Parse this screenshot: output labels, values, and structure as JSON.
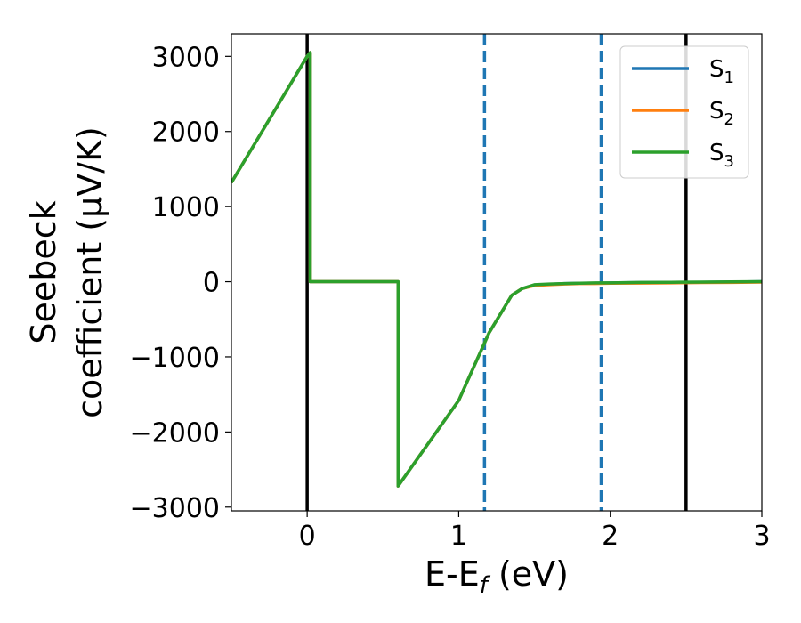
{
  "chart_data": {
    "type": "line",
    "xlabel": {
      "base": "E-E",
      "sub": "f",
      "tail": " (eV)"
    },
    "ylabel": {
      "line1": "Seebeck",
      "line2": "coefficient  (μV/K)"
    },
    "xlim": [
      -0.5,
      3.0
    ],
    "ylim": [
      -3050,
      3300
    ],
    "xticks": [
      0,
      1,
      2,
      3
    ],
    "xtick_labels": [
      "0",
      "1",
      "2",
      "3"
    ],
    "yticks": [
      -3000,
      -2000,
      -1000,
      0,
      1000,
      2000,
      3000
    ],
    "ytick_labels": [
      "−3000",
      "−2000",
      "−1000",
      "0",
      "1000",
      "2000",
      "3000"
    ],
    "grid": false,
    "legend_position": "top-right",
    "vlines": [
      {
        "x": 0.0,
        "style": "solid",
        "color": "#000000"
      },
      {
        "x": 2.5,
        "style": "solid",
        "color": "#000000"
      },
      {
        "x": 1.17,
        "style": "dashed",
        "color": "#1f77b4"
      },
      {
        "x": 1.94,
        "style": "dashed",
        "color": "#1f77b4"
      }
    ],
    "series": [
      {
        "name": "S",
        "sub": "1",
        "color": "#1f77b4",
        "x": [
          -0.5,
          0.0,
          0.02,
          0.02,
          0.6,
          0.6,
          1.0,
          1.2,
          1.35,
          1.42,
          1.5,
          1.6,
          1.7,
          1.8,
          1.9,
          2.0,
          2.2,
          2.4,
          2.6,
          2.8,
          3.0
        ],
        "y": [
          1320,
          3000,
          3050,
          0,
          0,
          -2720,
          -1580,
          -680,
          -180,
          -90,
          -45,
          -35,
          -25,
          -20,
          -20,
          -15,
          -12,
          -10,
          -8,
          -6,
          0
        ]
      },
      {
        "name": "S",
        "sub": "2",
        "color": "#ff7f0e",
        "x": [
          -0.5,
          0.0,
          0.02,
          0.02,
          0.6,
          0.6,
          1.0,
          1.2,
          1.35,
          1.42,
          1.5,
          1.6,
          1.7,
          1.8,
          1.9,
          2.0,
          2.2,
          2.4,
          2.6,
          2.8,
          3.0
        ],
        "y": [
          1320,
          3000,
          3050,
          0,
          0,
          -2720,
          -1580,
          -680,
          -180,
          -90,
          -50,
          -40,
          -30,
          -25,
          -25,
          -20,
          -18,
          -15,
          -12,
          -10,
          -5
        ]
      },
      {
        "name": "S",
        "sub": "3",
        "color": "#2ca02c",
        "x": [
          -0.5,
          0.0,
          0.02,
          0.02,
          0.6,
          0.6,
          1.0,
          1.2,
          1.35,
          1.42,
          1.5,
          1.6,
          1.7,
          1.8,
          1.9,
          2.0,
          2.2,
          2.4,
          2.6,
          2.8,
          3.0
        ],
        "y": [
          1320,
          3000,
          3050,
          0,
          0,
          -2720,
          -1580,
          -680,
          -180,
          -90,
          -40,
          -30,
          -25,
          -20,
          -15,
          -15,
          -10,
          -8,
          -5,
          -3,
          0
        ]
      }
    ]
  }
}
